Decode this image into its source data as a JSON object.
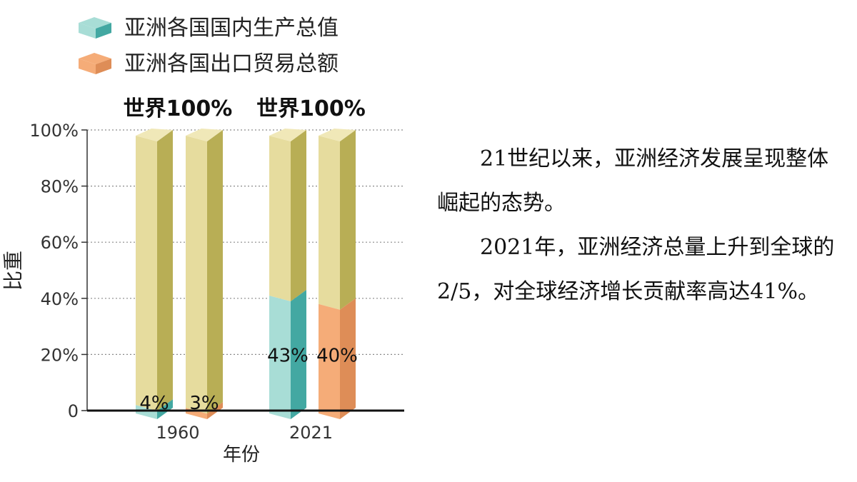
{
  "legend": {
    "items": [
      {
        "label": "亚洲各国国内生产总值",
        "color": "#6cc5bf"
      },
      {
        "label": "亚洲各国出口贸易总额",
        "color": "#f3a36a"
      }
    ]
  },
  "chart_data": {
    "type": "bar",
    "categories": [
      "1960",
      "2021"
    ],
    "series": [
      {
        "name": "亚洲各国国内生产总值",
        "values": [
          4,
          43
        ],
        "value_labels": [
          "4%",
          "43%"
        ]
      },
      {
        "name": "亚洲各国出口贸易总额",
        "values": [
          3,
          40
        ],
        "value_labels": [
          "3%",
          "40%"
        ]
      }
    ],
    "total_label": "世界100%",
    "ylabel": "比重",
    "xlabel": "年份",
    "ylim": [
      0,
      100
    ],
    "y_tick_labels": [
      "0",
      "20%",
      "40%",
      "60%",
      "80%",
      "100%"
    ],
    "y_ticks": [
      0,
      20,
      40,
      60,
      80,
      100
    ],
    "grid": true,
    "legend_position": "top-left",
    "colors": {
      "total": "#e6dc9e",
      "total_side": "#b8ae55",
      "gdp": "#a8ddd6",
      "gdp_side": "#43a8a2",
      "export": "#f5ac78",
      "export_side": "#de8d57"
    }
  },
  "text": {
    "para1": "21世纪以来，亚洲经济发展呈现整体崛起的态势。",
    "para2": "2021年，亚洲经济总量上升到全球的2/5，对全球经济增长贡献率高达41%。"
  }
}
